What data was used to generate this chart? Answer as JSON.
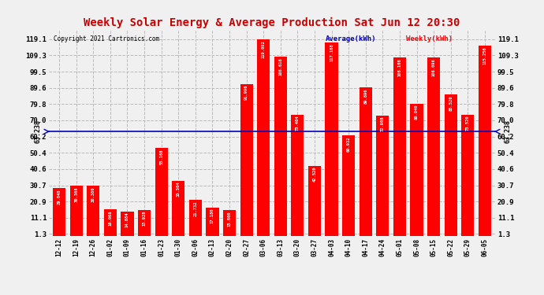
{
  "title": "Weekly Solar Energy & Average Production Sat Jun 12 20:30",
  "copyright": "Copyright 2021 Cartronics.com",
  "legend_avg": "Average(kWh)",
  "legend_weekly": "Weekly(kWh)",
  "average_value": 63.238,
  "categories": [
    "12-12",
    "12-19",
    "12-26",
    "01-02",
    "01-09",
    "01-16",
    "01-23",
    "01-30",
    "02-06",
    "02-13",
    "02-20",
    "02-27",
    "03-06",
    "03-13",
    "03-20",
    "03-27",
    "04-03",
    "04-10",
    "04-17",
    "04-24",
    "05-01",
    "05-08",
    "05-15",
    "05-22",
    "05-29",
    "06-05"
  ],
  "values": [
    29.048,
    30.368,
    30.38,
    16.068,
    14.884,
    15.928,
    53.168,
    33.504,
    21.732,
    17.18,
    15.6,
    91.996,
    119.092,
    108.616,
    73.464,
    42.52,
    117.168,
    60.932,
    89.896,
    72.908,
    108.108,
    80.04,
    108.096,
    85.52,
    73.52,
    115.256
  ],
  "bar_color": "#ff0000",
  "avg_line_color": "#0000bb",
  "avg_label_color": "#000000",
  "title_color": "#cc0000",
  "copyright_color": "#000000",
  "grid_color": "#bbbbbb",
  "background_color": "#f0f0f0",
  "yticks": [
    1.3,
    11.1,
    20.9,
    30.7,
    40.6,
    50.4,
    60.2,
    70.0,
    79.8,
    89.6,
    99.5,
    109.3,
    119.1
  ],
  "ylim": [
    0,
    125
  ],
  "value_label_color": "#ffffff",
  "avg_tick_value": "63.238"
}
